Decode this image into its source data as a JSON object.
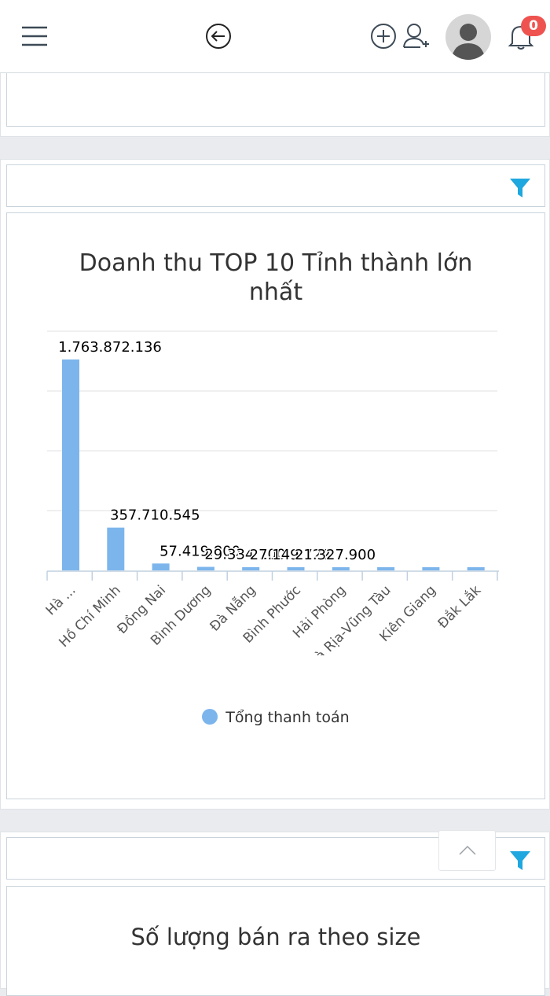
{
  "header": {
    "menu_icon": "hamburger-menu-icon",
    "back_icon": "arrow-left-circle-icon",
    "add_icon": "plus-circle-icon",
    "add_user_icon": "add-user-icon",
    "avatar_icon": "user-avatar",
    "bell_icon": "bell-icon",
    "notification_count": "0"
  },
  "colors": {
    "bar": "#7cb5ec",
    "filter": "#1fa7df",
    "badge": "#ef5350"
  },
  "chart1": {
    "filter_icon": "filter-icon",
    "legend_label": "Tổng thanh toán"
  },
  "chart2": {
    "title": "Số lượng bán ra theo size",
    "filter_icon": "filter-icon",
    "scroll_icon": "chevron-up-icon"
  },
  "chart_data": {
    "type": "bar",
    "title": "Doanh thu TOP 10 Tỉnh thành lớn nhất",
    "title_lines": [
      "Doanh thu TOP 10 Tỉnh thành lớn",
      "nhất"
    ],
    "categories": [
      "Hà ...",
      "Hồ Chí Minh",
      "Đồng Nai",
      "Bình Dương",
      "Đà Nẵng",
      "Bình Phước",
      "Hải Phòng",
      "Bà Rịa-Vũng Tàu",
      "Kiên Giang",
      "Đắk Lắk"
    ],
    "series": [
      {
        "name": "Tổng thanh toán",
        "values": [
          1763872136,
          357710545,
          57419800,
          29334100,
          27149722,
          21327900,
          20000000,
          19000000,
          18000000,
          17000000
        ],
        "labels": [
          "1.763.872.136",
          "357.710.545",
          "57.419.800",
          "29.334.100",
          "27.149.722",
          "21.327.900",
          "",
          "",
          "",
          ""
        ]
      }
    ],
    "ylim": [
      0,
      2000000000
    ],
    "grid": true,
    "legend": "bottom-center"
  }
}
